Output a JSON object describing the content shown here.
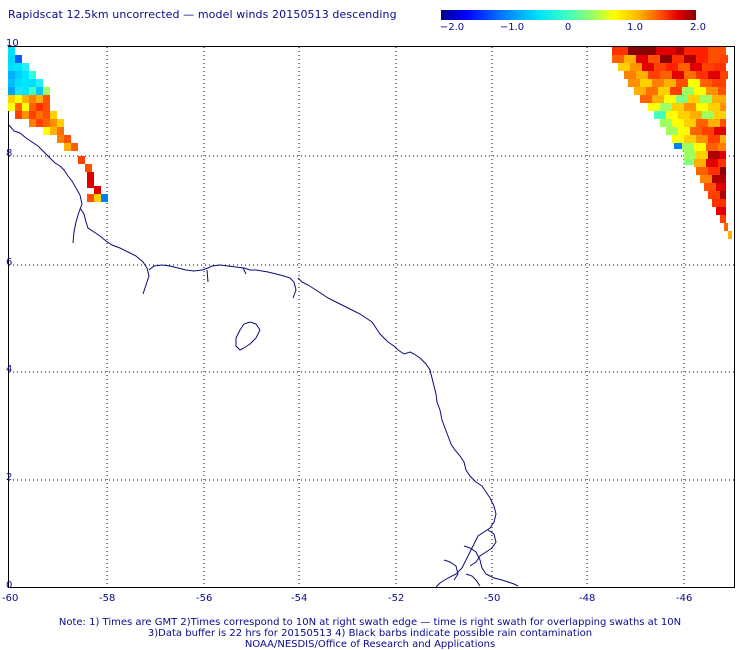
{
  "title": "Rapidscat 12.5km uncorrected — model winds 20150513 descending",
  "colorbar": {
    "ticks": [
      "−2.0",
      "−1.0",
      "0",
      "1.0",
      "2.0"
    ],
    "colors": [
      "#00008f",
      "#0000ff",
      "#0080ff",
      "#00e0ff",
      "#40ffbf",
      "#a0ff60",
      "#ffff00",
      "#ffb000",
      "#ff5000",
      "#e00000",
      "#8b0000"
    ]
  },
  "axes": {
    "y_labels": [
      "10",
      "8",
      "6",
      "4",
      "2",
      "0"
    ],
    "x_labels": [
      "-60",
      "-58",
      "-56",
      "-54",
      "-52",
      "-50",
      "-48",
      "-46"
    ]
  },
  "notes": {
    "line1": "Note: 1) Times are GMT 2)Times correspond to 10N at right swath edge — time is right swath for overlapping swaths at 10N",
    "line2": "3)Data buffer is 22 hrs for 20150513 4) Black barbs indicate possible rain contamination",
    "line3": "NOAA/NESDIS/Office of Research and Applications"
  }
}
